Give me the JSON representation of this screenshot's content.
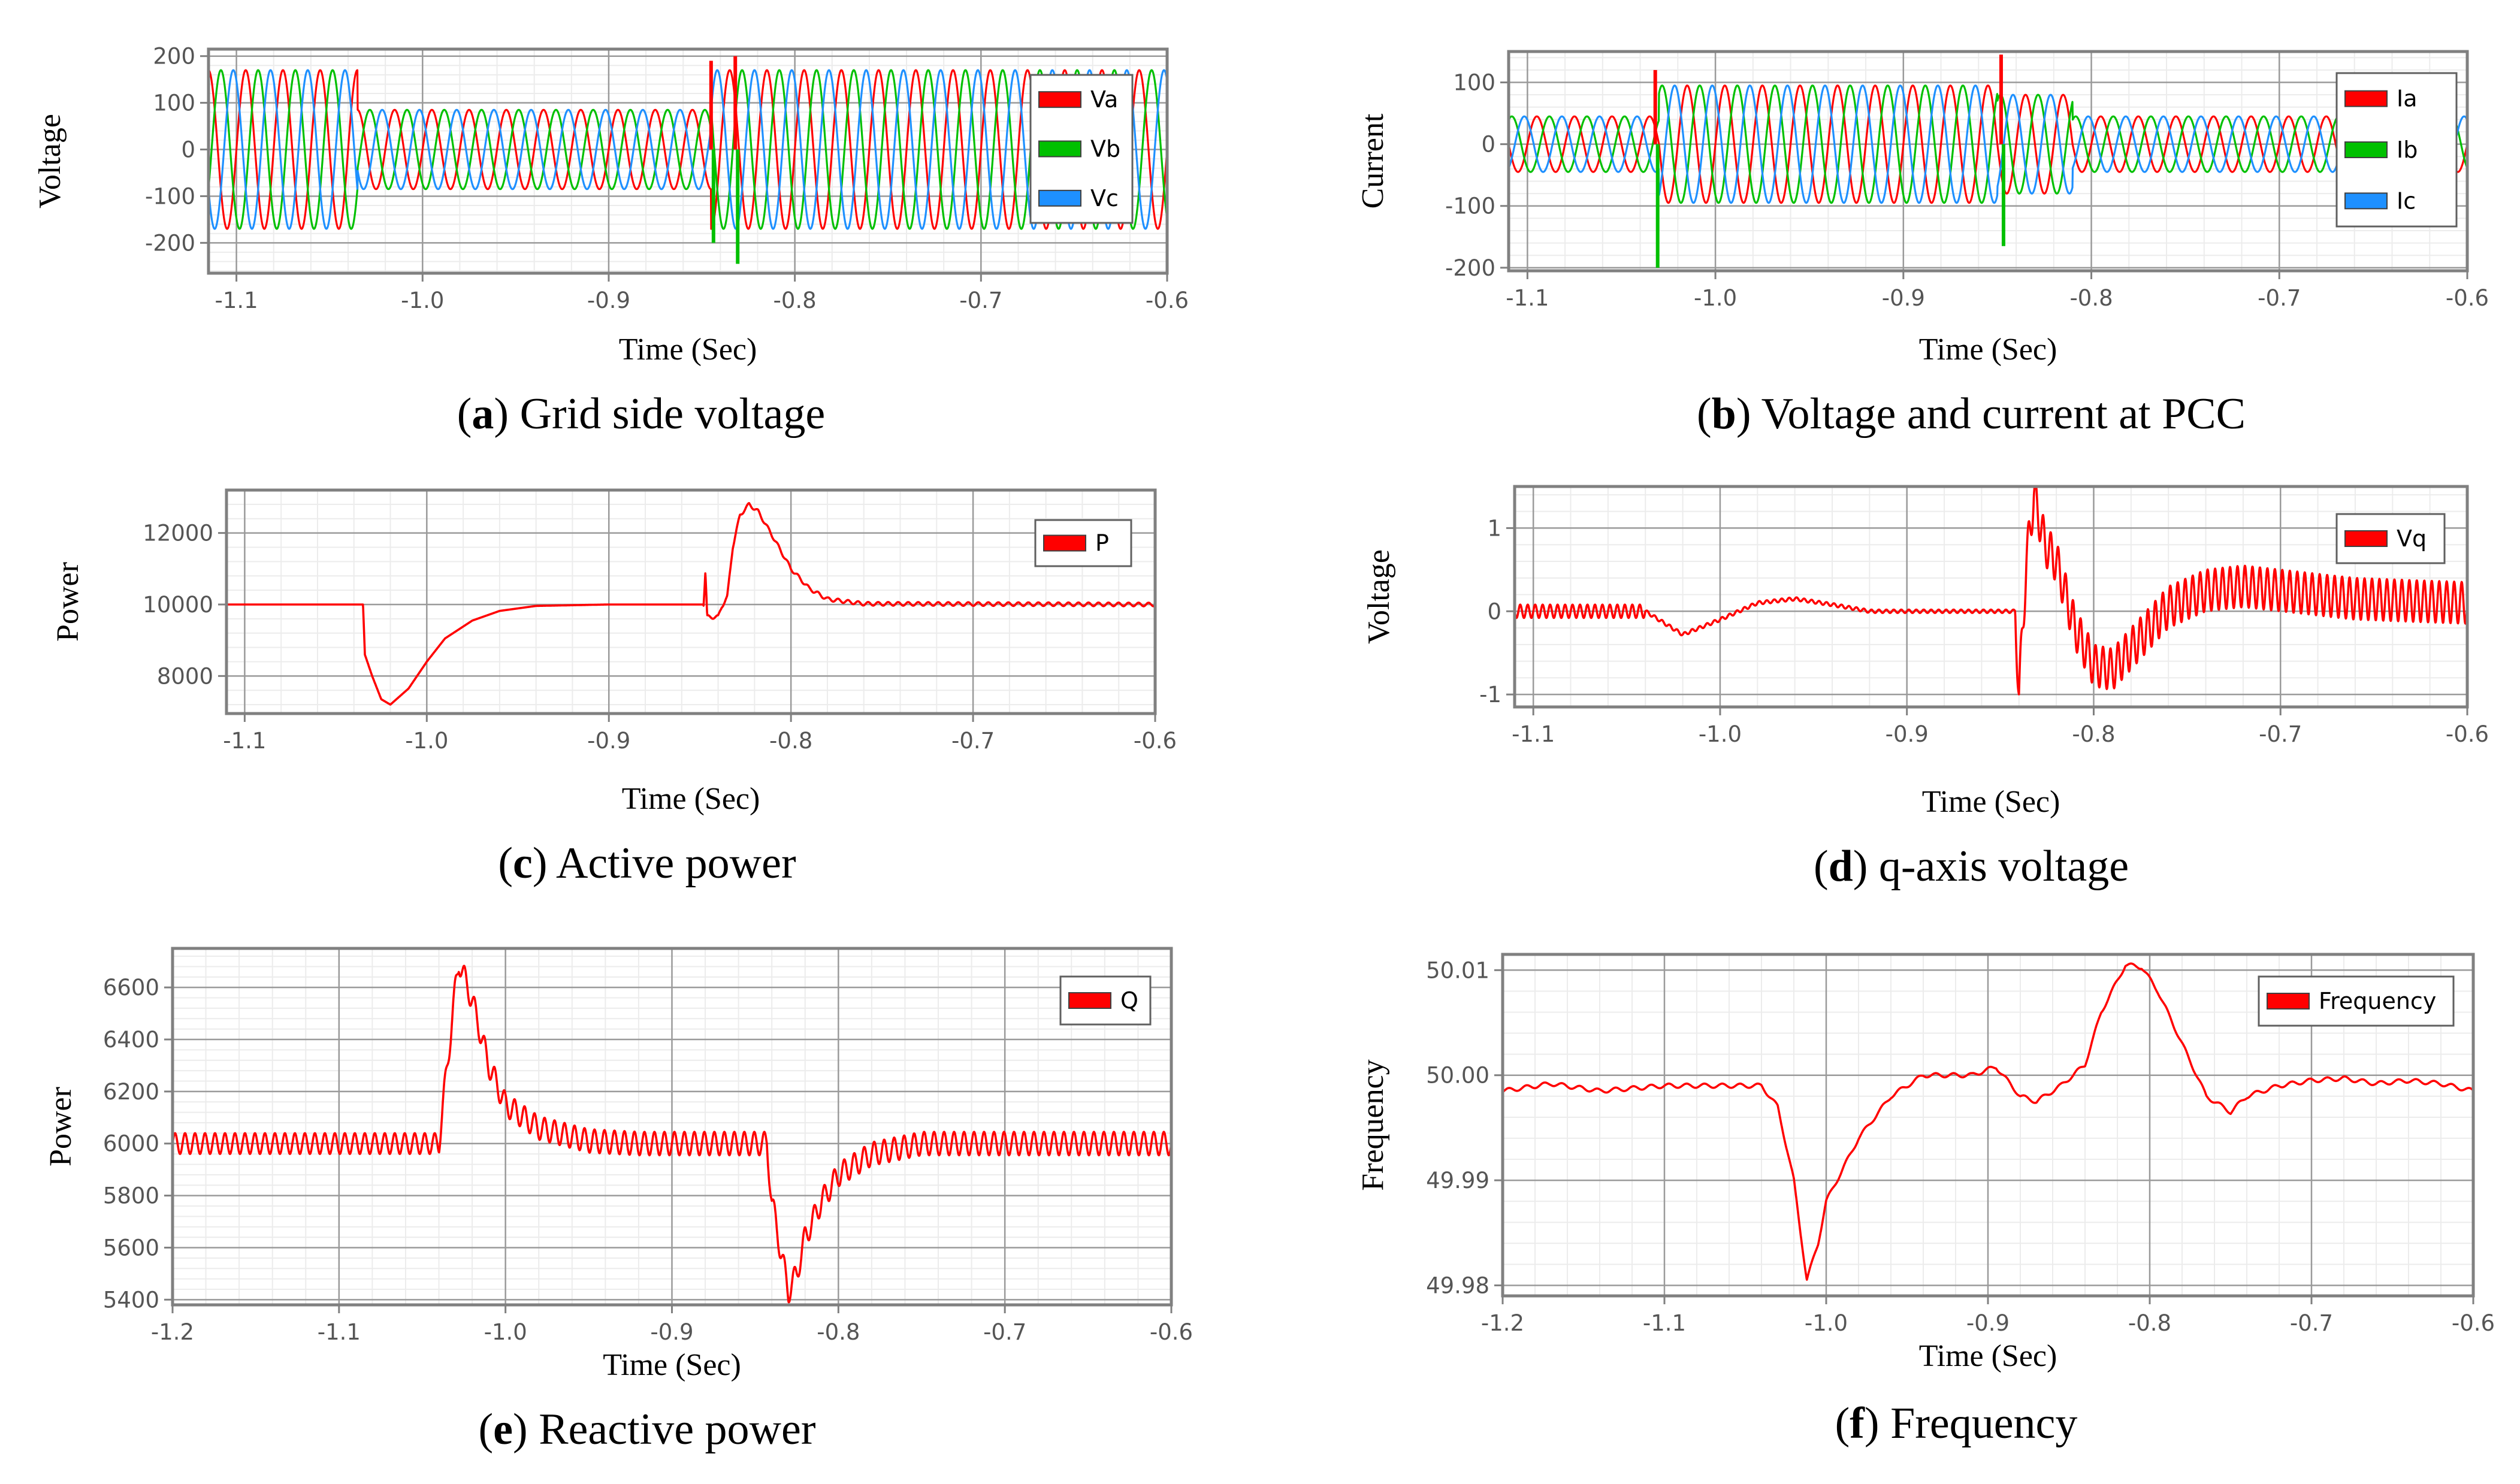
{
  "figure": {
    "colors": {
      "a": "#ff0000",
      "b": "#00c000",
      "c": "#1e90ff",
      "grid": "#c8c8c8",
      "frame": "#808080"
    }
  },
  "chart_data": [
    {
      "id": "a",
      "type": "line",
      "caption_letter": "a",
      "caption_text": "Grid side voltage",
      "xlabel": "Time (Sec)",
      "ylabel": "Voltage",
      "xlim": [
        -1.115,
        -0.6
      ],
      "ylim": [
        -265,
        215
      ],
      "xticks": [
        -1.1,
        -1.0,
        -0.9,
        -0.8,
        -0.7,
        -0.6
      ],
      "xtick_labels": [
        "-1.1",
        "-1.0",
        "-0.9",
        "-0.8",
        "-0.7",
        "-0.6"
      ],
      "yticks": [
        200,
        100,
        0,
        -100,
        -200
      ],
      "ytick_labels": [
        "200",
        "100",
        "0",
        "-100",
        "-200"
      ],
      "series": [
        {
          "name": "Va",
          "color": "#ff0000"
        },
        {
          "name": "Vb",
          "color": "#00c000"
        },
        {
          "name": "Vc",
          "color": "#1e90ff"
        }
      ],
      "model": {
        "kind": "three_phase",
        "freq": 50,
        "segments": [
          [
            -1.115,
            -1.035,
            170
          ],
          [
            -1.035,
            -0.845,
            85
          ],
          [
            -0.845,
            -0.6,
            170
          ]
        ],
        "spikes": [
          [
            -0.845,
            190,
            -200
          ],
          [
            -0.832,
            200,
            -245
          ]
        ]
      }
    },
    {
      "id": "b",
      "type": "line",
      "caption_letter": "b",
      "caption_text": "Voltage and current at PCC",
      "xlabel": "Time (Sec)",
      "ylabel": "Current",
      "xlim": [
        -1.11,
        -0.6
      ],
      "ylim": [
        -205,
        150
      ],
      "xticks": [
        -1.1,
        -1.0,
        -0.9,
        -0.8,
        -0.7,
        -0.6
      ],
      "xtick_labels": [
        "-1.1",
        "-1.0",
        "-0.9",
        "-0.8",
        "-0.7",
        "-0.6"
      ],
      "yticks": [
        100,
        0,
        -100,
        -200
      ],
      "ytick_labels": [
        "100",
        "0",
        "-100",
        "-200"
      ],
      "series": [
        {
          "name": "Ia",
          "color": "#ff0000"
        },
        {
          "name": "Ib",
          "color": "#00c000"
        },
        {
          "name": "Ic",
          "color": "#1e90ff"
        }
      ],
      "model": {
        "kind": "three_phase",
        "freq": 50,
        "segments": [
          [
            -1.11,
            -1.03,
            45
          ],
          [
            -1.03,
            -0.85,
            95
          ],
          [
            -0.85,
            -0.81,
            80
          ],
          [
            -0.81,
            -0.6,
            45
          ]
        ],
        "spikes": [
          [
            -1.032,
            120,
            -200
          ],
          [
            -0.848,
            145,
            -165
          ]
        ]
      }
    },
    {
      "id": "c",
      "type": "line",
      "caption_letter": "c",
      "caption_text": "Active power",
      "xlabel": "Time (Sec)",
      "ylabel": "Power",
      "xlim": [
        -1.11,
        -0.6
      ],
      "ylim": [
        6950,
        13200
      ],
      "xticks": [
        -1.1,
        -1.0,
        -0.9,
        -0.8,
        -0.7,
        -0.6
      ],
      "xtick_labels": [
        "-1.1",
        "-1.0",
        "-0.9",
        "-0.8",
        "-0.7",
        "-0.6"
      ],
      "yticks": [
        12000,
        10000,
        8000
      ],
      "ytick_labels": [
        "12000",
        "10000",
        "8000"
      ],
      "series": [
        {
          "name": "P",
          "color": "#ff0000"
        }
      ],
      "points": [
        [
          -1.11,
          10000
        ],
        [
          -1.035,
          10000
        ],
        [
          -1.034,
          8600
        ],
        [
          -1.03,
          8000
        ],
        [
          -1.025,
          7350
        ],
        [
          -1.02,
          7200
        ],
        [
          -1.01,
          7650
        ],
        [
          -1.0,
          8400
        ],
        [
          -0.99,
          9050
        ],
        [
          -0.975,
          9550
        ],
        [
          -0.96,
          9820
        ],
        [
          -0.94,
          9960
        ],
        [
          -0.9,
          10000
        ],
        [
          -0.848,
          10000
        ],
        [
          -0.847,
          10900
        ],
        [
          -0.846,
          9650
        ],
        [
          -0.84,
          9650
        ],
        [
          -0.838,
          9950
        ],
        [
          -0.835,
          10200
        ],
        [
          -0.832,
          11600
        ],
        [
          -0.828,
          12500
        ],
        [
          -0.823,
          12800
        ],
        [
          -0.818,
          12600
        ],
        [
          -0.81,
          11900
        ],
        [
          -0.8,
          11000
        ],
        [
          -0.79,
          10450
        ],
        [
          -0.78,
          10150
        ],
        [
          -0.76,
          10020
        ],
        [
          -0.6,
          10000
        ]
      ],
      "ripple": {
        "amp": 50,
        "period": 0.0055,
        "from": -0.848
      }
    },
    {
      "id": "d",
      "type": "line",
      "caption_letter": "d",
      "caption_text": "q-axis voltage",
      "xlabel": "Time (Sec)",
      "ylabel": "Voltage",
      "xlim": [
        -1.11,
        -0.6
      ],
      "ylim": [
        -1.15,
        1.5
      ],
      "xticks": [
        -1.1,
        -1.0,
        -0.9,
        -0.8,
        -0.7,
        -0.6
      ],
      "xtick_labels": [
        "-1.1",
        "-1.0",
        "-0.9",
        "-0.8",
        "-0.7",
        "-0.6"
      ],
      "yticks": [
        1,
        0,
        -1
      ],
      "ytick_labels": [
        "1",
        "0",
        "-1"
      ],
      "series": [
        {
          "name": "Vq",
          "color": "#ff0000"
        }
      ],
      "points": [
        [
          -1.11,
          0.0
        ],
        [
          -1.04,
          0.0
        ],
        [
          -1.02,
          -0.28
        ],
        [
          -1.0,
          -0.1
        ],
        [
          -0.98,
          0.1
        ],
        [
          -0.96,
          0.15
        ],
        [
          -0.94,
          0.08
        ],
        [
          -0.92,
          0.0
        ],
        [
          -0.842,
          0.0
        ],
        [
          -0.84,
          -1.0
        ],
        [
          -0.836,
          0.6
        ],
        [
          -0.832,
          1.4
        ],
        [
          -0.826,
          0.8
        ],
        [
          -0.82,
          0.6
        ],
        [
          -0.81,
          -0.2
        ],
        [
          -0.8,
          -0.65
        ],
        [
          -0.79,
          -0.7
        ],
        [
          -0.78,
          -0.45
        ],
        [
          -0.76,
          0.05
        ],
        [
          -0.74,
          0.25
        ],
        [
          -0.72,
          0.3
        ],
        [
          -0.7,
          0.25
        ],
        [
          -0.66,
          0.15
        ],
        [
          -0.6,
          0.1
        ]
      ],
      "ripple_segments": [
        [
          -1.11,
          -1.04,
          0.08
        ],
        [
          -1.04,
          -0.842,
          0.02
        ],
        [
          -0.842,
          -0.6,
          0.25
        ]
      ],
      "ripple_period": 0.004
    },
    {
      "id": "e",
      "type": "line",
      "caption_letter": "e",
      "caption_text": "Reactive power",
      "xlabel": "Time (Sec)",
      "ylabel": "Power",
      "xlim": [
        -1.2,
        -0.6
      ],
      "ylim": [
        5380,
        6750
      ],
      "xticks": [
        -1.2,
        -1.1,
        -1.0,
        -0.9,
        -0.8,
        -0.7,
        -0.6
      ],
      "xtick_labels": [
        "-1.2",
        "-1.1",
        "-1.0",
        "-0.9",
        "-0.8",
        "-0.7",
        "-0.6"
      ],
      "yticks": [
        6600,
        6400,
        6200,
        6000,
        5800,
        5600,
        5400
      ],
      "ytick_labels": [
        "6600",
        "6400",
        "6200",
        "6000",
        "5800",
        "5600",
        "5400"
      ],
      "series": [
        {
          "name": "Q",
          "color": "#ff0000"
        }
      ],
      "points": [
        [
          -1.2,
          6000
        ],
        [
          -1.04,
          6000
        ],
        [
          -1.035,
          6300
        ],
        [
          -1.03,
          6600
        ],
        [
          -1.028,
          6700
        ],
        [
          -1.02,
          6550
        ],
        [
          -1.01,
          6300
        ],
        [
          -1.0,
          6150
        ],
        [
          -0.98,
          6060
        ],
        [
          -0.95,
          6010
        ],
        [
          -0.92,
          6000
        ],
        [
          -0.843,
          6000
        ],
        [
          -0.84,
          5780
        ],
        [
          -0.835,
          5600
        ],
        [
          -0.83,
          5430
        ],
        [
          -0.825,
          5500
        ],
        [
          -0.82,
          5640
        ],
        [
          -0.81,
          5780
        ],
        [
          -0.8,
          5880
        ],
        [
          -0.78,
          5960
        ],
        [
          -0.75,
          6000
        ],
        [
          -0.6,
          6000
        ]
      ],
      "ripple_segments": [
        [
          -1.2,
          -1.04,
          40
        ],
        [
          -1.04,
          -0.6,
          45
        ]
      ],
      "ripple_period": 0.006
    },
    {
      "id": "f",
      "type": "line",
      "caption_letter": "f",
      "caption_text": "Frequency",
      "xlabel": "Time (Sec)",
      "ylabel": "Frequency",
      "xlim": [
        -1.2,
        -0.6
      ],
      "ylim": [
        49.979,
        50.0115
      ],
      "xticks": [
        -1.2,
        -1.1,
        -1.0,
        -0.9,
        -0.8,
        -0.7,
        -0.6
      ],
      "xtick_labels": [
        "-1.2",
        "-1.1",
        "-1.0",
        "-0.9",
        "-0.8",
        "-0.7",
        "-0.6"
      ],
      "yticks": [
        50.01,
        50.0,
        49.99,
        49.98
      ],
      "ytick_labels": [
        "50.01",
        "50.00",
        "49.99",
        "49.98"
      ],
      "series": [
        {
          "name": "Frequency",
          "color": "#ff0000"
        }
      ],
      "points": [
        [
          -1.2,
          49.9985
        ],
        [
          -1.17,
          49.9992
        ],
        [
          -1.14,
          49.9985
        ],
        [
          -1.1,
          49.999
        ],
        [
          -1.04,
          49.999
        ],
        [
          -1.03,
          49.997
        ],
        [
          -1.02,
          49.99
        ],
        [
          -1.012,
          49.9805
        ],
        [
          -1.005,
          49.984
        ],
        [
          -1.0,
          49.988
        ],
        [
          -0.98,
          49.994
        ],
        [
          -0.96,
          49.998
        ],
        [
          -0.94,
          50.0
        ],
        [
          -0.91,
          50.0
        ],
        [
          -0.895,
          50.0008
        ],
        [
          -0.88,
          49.998
        ],
        [
          -0.87,
          49.9975
        ],
        [
          -0.855,
          49.999
        ],
        [
          -0.84,
          50.001
        ],
        [
          -0.83,
          50.006
        ],
        [
          -0.815,
          50.0105
        ],
        [
          -0.805,
          50.0103
        ],
        [
          -0.795,
          50.008
        ],
        [
          -0.78,
          50.003
        ],
        [
          -0.765,
          49.998
        ],
        [
          -0.75,
          49.9965
        ],
        [
          -0.74,
          49.998
        ],
        [
          -0.72,
          49.999
        ],
        [
          -0.7,
          49.9995
        ],
        [
          -0.68,
          49.9997
        ],
        [
          -0.66,
          49.9992
        ],
        [
          -0.64,
          49.9995
        ],
        [
          -0.62,
          49.9992
        ],
        [
          -0.6,
          49.9985
        ]
      ],
      "ripple": {
        "amp": 0.0002,
        "period": 0.011,
        "from": -1.2
      }
    }
  ]
}
